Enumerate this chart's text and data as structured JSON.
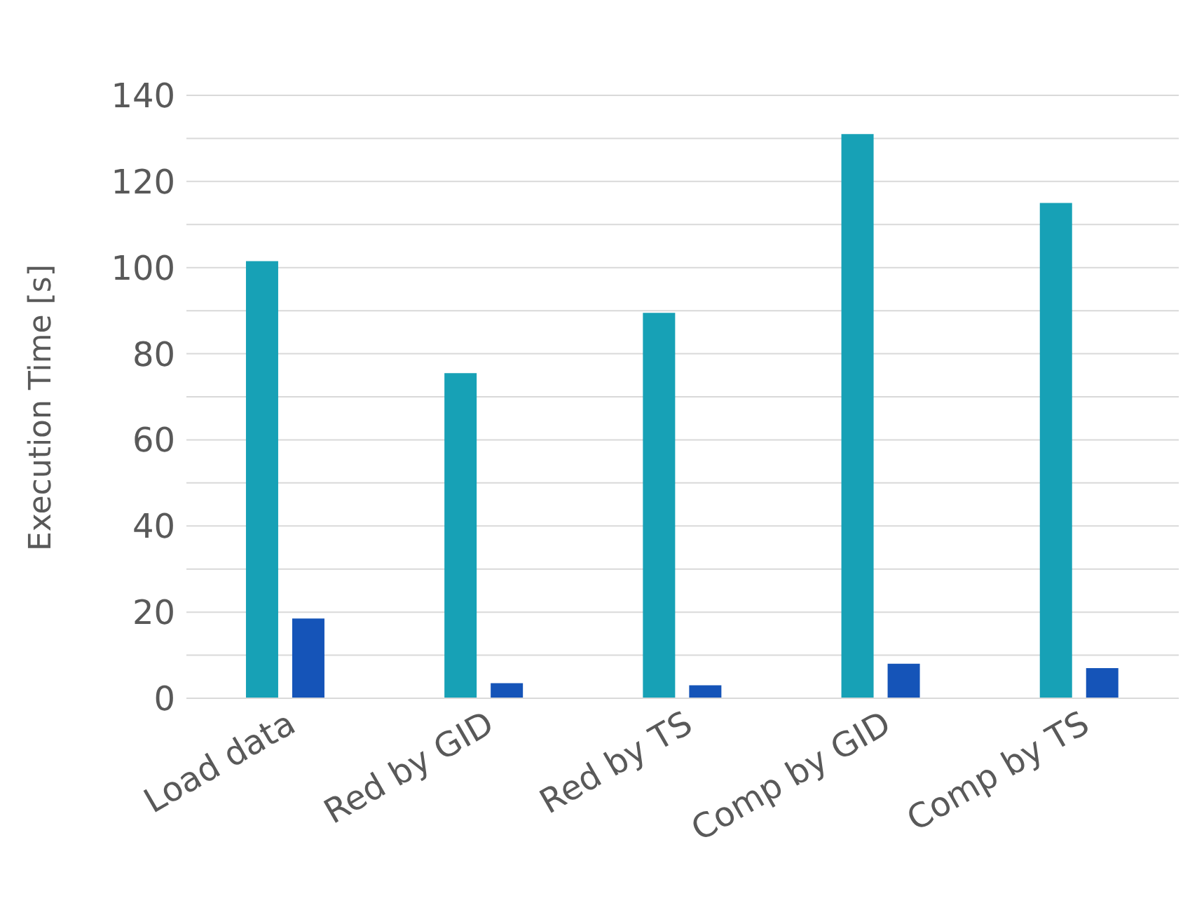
{
  "chart_data": {
    "type": "bar",
    "ylabel": "Execution Time [s]",
    "categories": [
      "Load data",
      "Red by GID",
      "Red by TS",
      "Comp by GID",
      "Comp by TS"
    ],
    "series": [
      {
        "color": "#17a1b6",
        "values": [
          101.5,
          75.5,
          89.5,
          131,
          115
        ]
      },
      {
        "color": "#1554b8",
        "values": [
          18.5,
          3.5,
          3,
          8,
          7
        ]
      }
    ],
    "ylim": [
      0,
      140
    ],
    "yticks": [
      0,
      {
        "value": 10,
        "label": null
      },
      20,
      {
        "value": 30,
        "label": null
      },
      40,
      {
        "value": 50,
        "label": null
      },
      60,
      {
        "value": 70,
        "label": null
      },
      80,
      {
        "value": 90,
        "label": null
      },
      100,
      {
        "value": 110,
        "label": null
      },
      120,
      {
        "value": 130,
        "label": null
      },
      140
    ],
    "grid": "y"
  }
}
